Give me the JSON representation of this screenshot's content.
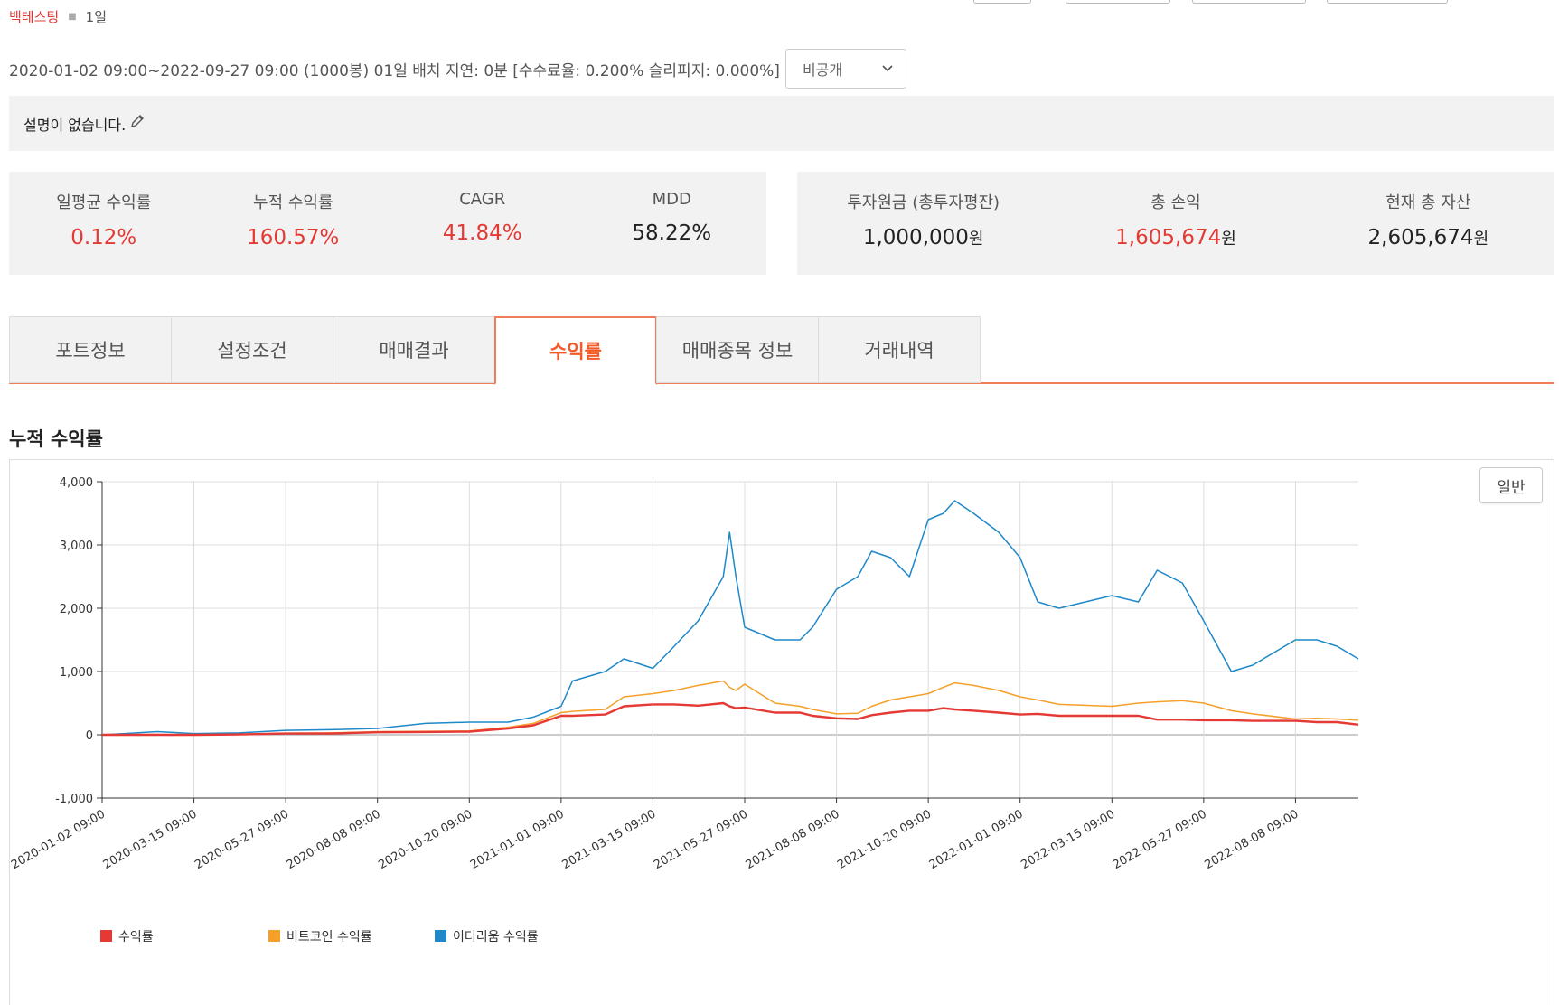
{
  "breadcrumb": {
    "main": "백테스팅",
    "sub": "1일"
  },
  "meta": {
    "summary": "2020-01-02 09:00~2022-09-27 09:00 (1000봉) 01일 배치 지연: 0분 [수수료율: 0.200% 슬리피지: 0.000%]",
    "visibility": "비공개"
  },
  "description": "설명이 없습니다.",
  "stats_left": [
    {
      "label": "일평균 수익률",
      "value": "0.12%",
      "color": "#e53935"
    },
    {
      "label": "누적 수익률",
      "value": "160.57%",
      "color": "#e53935"
    },
    {
      "label": "CAGR",
      "value": "41.84%",
      "color": "#e53935"
    },
    {
      "label": "MDD",
      "value": "58.22%",
      "color": "#222222"
    }
  ],
  "stats_right": [
    {
      "label": "투자원금 (총투자평잔)",
      "value": "1,000,000",
      "unit": "원",
      "color": "#222222"
    },
    {
      "label": "총 손익",
      "value": "1,605,674",
      "unit": "원",
      "color": "#e53935"
    },
    {
      "label": "현재 총 자산",
      "value": "2,605,674",
      "unit": "원",
      "color": "#222222"
    }
  ],
  "tabs": [
    "포트정보",
    "설정조건",
    "매매결과",
    "수익률",
    "매매종목 정보",
    "거래내역"
  ],
  "active_tab": "수익률",
  "section_title": "누적 수익률",
  "chart_mode_button": "일반",
  "chart_data": {
    "type": "line",
    "title": "누적 수익률",
    "ylim": [
      -1000,
      4000
    ],
    "yticks": [
      "-1,000",
      "0",
      "1,000",
      "2,000",
      "3,000",
      "4,000"
    ],
    "ytick_values": [
      -1000,
      0,
      1000,
      2000,
      3000,
      4000
    ],
    "xticks": [
      "2020-01-02 09:00",
      "2020-03-15 09:00",
      "2020-05-27 09:00",
      "2020-08-08 09:00",
      "2020-10-20 09:00",
      "2021-01-01 09:00",
      "2021-03-15 09:00",
      "2021-05-27 09:00",
      "2021-08-08 09:00",
      "2021-10-20 09:00",
      "2022-01-01 09:00",
      "2022-03-15 09:00",
      "2022-05-27 09:00",
      "2022-08-08 09:00"
    ],
    "x": [
      "2020-01-02",
      "2020-02-15",
      "2020-03-15",
      "2020-04-20",
      "2020-05-27",
      "2020-07-01",
      "2020-08-08",
      "2020-09-15",
      "2020-10-20",
      "2020-11-20",
      "2020-12-10",
      "2021-01-01",
      "2021-01-10",
      "2021-02-05",
      "2021-02-20",
      "2021-03-15",
      "2021-04-01",
      "2021-04-20",
      "2021-05-10",
      "2021-05-15",
      "2021-05-20",
      "2021-05-27",
      "2021-06-20",
      "2021-07-10",
      "2021-07-20",
      "2021-08-08",
      "2021-08-25",
      "2021-09-05",
      "2021-09-20",
      "2021-10-05",
      "2021-10-20",
      "2021-11-01",
      "2021-11-10",
      "2021-11-25",
      "2021-12-15",
      "2022-01-01",
      "2022-01-15",
      "2022-02-01",
      "2022-03-15",
      "2022-04-05",
      "2022-04-20",
      "2022-05-10",
      "2022-05-27",
      "2022-06-18",
      "2022-07-05",
      "2022-08-08",
      "2022-08-25",
      "2022-09-10",
      "2022-09-27"
    ],
    "legend_position": "bottom-left",
    "grid": true,
    "series": [
      {
        "name": "수익률",
        "color": "#e53935",
        "values": [
          0,
          0,
          0,
          5,
          20,
          20,
          40,
          45,
          50,
          100,
          150,
          300,
          300,
          320,
          450,
          480,
          480,
          460,
          500,
          450,
          420,
          430,
          350,
          350,
          300,
          260,
          250,
          310,
          350,
          380,
          380,
          420,
          400,
          380,
          350,
          320,
          330,
          300,
          300,
          300,
          240,
          240,
          230,
          230,
          220,
          220,
          200,
          200,
          160
        ]
      },
      {
        "name": "비트코인 수익률",
        "color": "#f5a029",
        "values": [
          0,
          5,
          0,
          10,
          25,
          30,
          50,
          55,
          60,
          120,
          180,
          350,
          370,
          400,
          600,
          650,
          700,
          780,
          850,
          750,
          700,
          800,
          500,
          450,
          400,
          330,
          340,
          450,
          550,
          600,
          650,
          750,
          820,
          780,
          700,
          600,
          550,
          480,
          450,
          500,
          520,
          540,
          500,
          380,
          330,
          250,
          260,
          250,
          230
        ]
      },
      {
        "name": "이더리움 수익률",
        "color": "#1e88c9",
        "values": [
          0,
          50,
          20,
          30,
          70,
          80,
          100,
          180,
          200,
          200,
          280,
          450,
          850,
          1000,
          1200,
          1050,
          1400,
          1800,
          2500,
          3200,
          2500,
          1700,
          1500,
          1500,
          1700,
          2300,
          2500,
          2900,
          2800,
          2500,
          3400,
          3500,
          3700,
          3500,
          3200,
          2800,
          2100,
          2000,
          2200,
          2100,
          2600,
          2400,
          1800,
          1000,
          1100,
          1500,
          1500,
          1400,
          1200
        ]
      }
    ]
  }
}
